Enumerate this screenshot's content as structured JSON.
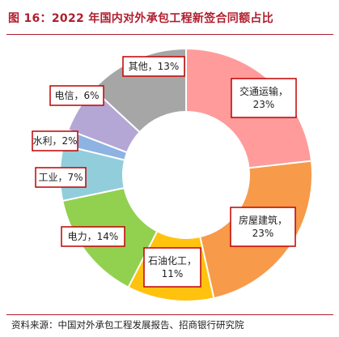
{
  "header": {
    "title": "图 16：2022 年国内对外承包工程新签合同额占比"
  },
  "footer": {
    "source": "资料来源：中国对外承包工程发展报告、招商银行研究院"
  },
  "chart_data": {
    "type": "pie",
    "donut": true,
    "title": "图 16：2022 年国内对外承包工程新签合同额占比",
    "unit": "%",
    "categories": [
      "交通运输",
      "房屋建筑",
      "石油化工",
      "电力",
      "工业",
      "水利",
      "电信",
      "其他"
    ],
    "values": [
      23,
      23,
      11,
      14,
      7,
      2,
      6,
      13
    ],
    "colors": [
      "#ff9b9b",
      "#f79a4a",
      "#ffc20e",
      "#92d050",
      "#92cddc",
      "#8db3e2",
      "#b4a7d6",
      "#a6a6a6"
    ],
    "labels": [
      "交通运输，\n23%",
      "房屋建筑，\n23%",
      "石油化工，\n11%",
      "电力，14%",
      "工业，7%",
      "水利，2%",
      "电信，6%",
      "其他，13%"
    ],
    "legend": "none",
    "label_border_color": "#c00000"
  }
}
